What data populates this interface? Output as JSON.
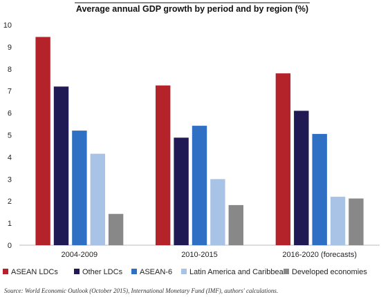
{
  "chart_data": {
    "type": "bar",
    "title": "Average annual GDP growth by period and by region (%)",
    "categories": [
      "2004-2009",
      "2010-2015",
      "2016-2020 (forecasts)"
    ],
    "series": [
      {
        "name": "ASEAN LDCs",
        "color": "#b5232a",
        "values": [
          9.45,
          7.25,
          7.8
        ]
      },
      {
        "name": "Other LDCs",
        "color": "#1f1a54",
        "values": [
          7.2,
          4.88,
          6.1
        ]
      },
      {
        "name": "ASEAN-6",
        "color": "#2f6fc4",
        "values": [
          5.2,
          5.42,
          5.05
        ]
      },
      {
        "name": "Latin America and Caribbean",
        "color": "#a9c3e6",
        "values": [
          4.15,
          3.0,
          2.2
        ]
      },
      {
        "name": "Developed economies",
        "color": "#888888",
        "values": [
          1.42,
          1.82,
          2.12
        ]
      }
    ],
    "ylim": [
      0,
      10
    ],
    "yticks": [
      "0",
      "1",
      "2",
      "3",
      "4",
      "5",
      "6",
      "7",
      "8",
      "9",
      "10"
    ],
    "grid": false,
    "legend_position": "bottom"
  },
  "source": "Source: World Economic Outlook (October 2015), International Monetary Fund (IMF), authors' calculations."
}
